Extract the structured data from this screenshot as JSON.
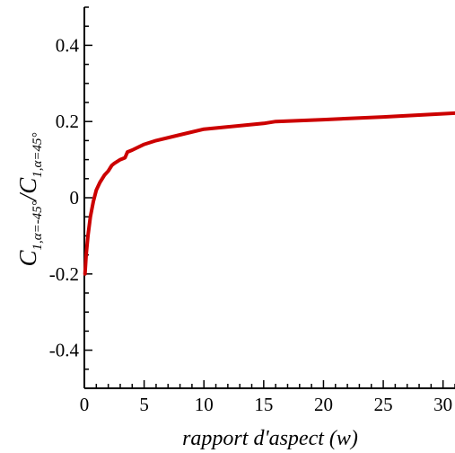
{
  "chart_data": {
    "type": "line",
    "title": "",
    "xlabel": "rapport d'aspect (w)",
    "ylabel": {
      "main": "C",
      "sub1": "1,α=-45°",
      "sep": "/C",
      "sub2": "1,α=45°"
    },
    "xlim": [
      0,
      31
    ],
    "ylim": [
      -0.5,
      0.5
    ],
    "x_ticks": [
      0,
      5,
      10,
      15,
      20,
      25,
      30
    ],
    "x_tick_labels": [
      "0",
      "5",
      "10",
      "15",
      "20",
      "25",
      "30"
    ],
    "y_ticks": [
      0.4,
      0.2,
      0,
      -0.2,
      -0.4
    ],
    "y_tick_labels": [
      "0.4",
      "0.2",
      "0",
      "-0.2",
      "-0.4"
    ],
    "grid": false,
    "colors": {
      "series": "#cc0000",
      "axis": "#000000"
    },
    "series": [
      {
        "x": [
          0.05,
          0.15,
          0.3,
          0.5,
          0.75,
          1.0,
          1.3,
          1.7,
          2.0,
          2.3,
          2.5,
          3.0,
          3.4,
          3.6,
          4.0,
          5.0,
          6.0,
          8.0,
          10.0,
          12.0,
          15.0,
          16.0,
          20.0,
          25.0,
          31.0
        ],
        "values": [
          -0.2,
          -0.15,
          -0.1,
          -0.05,
          -0.01,
          0.02,
          0.04,
          0.06,
          0.07,
          0.085,
          0.09,
          0.1,
          0.105,
          0.12,
          0.125,
          0.14,
          0.15,
          0.165,
          0.18,
          0.186,
          0.195,
          0.2,
          0.205,
          0.212,
          0.222
        ]
      }
    ]
  }
}
